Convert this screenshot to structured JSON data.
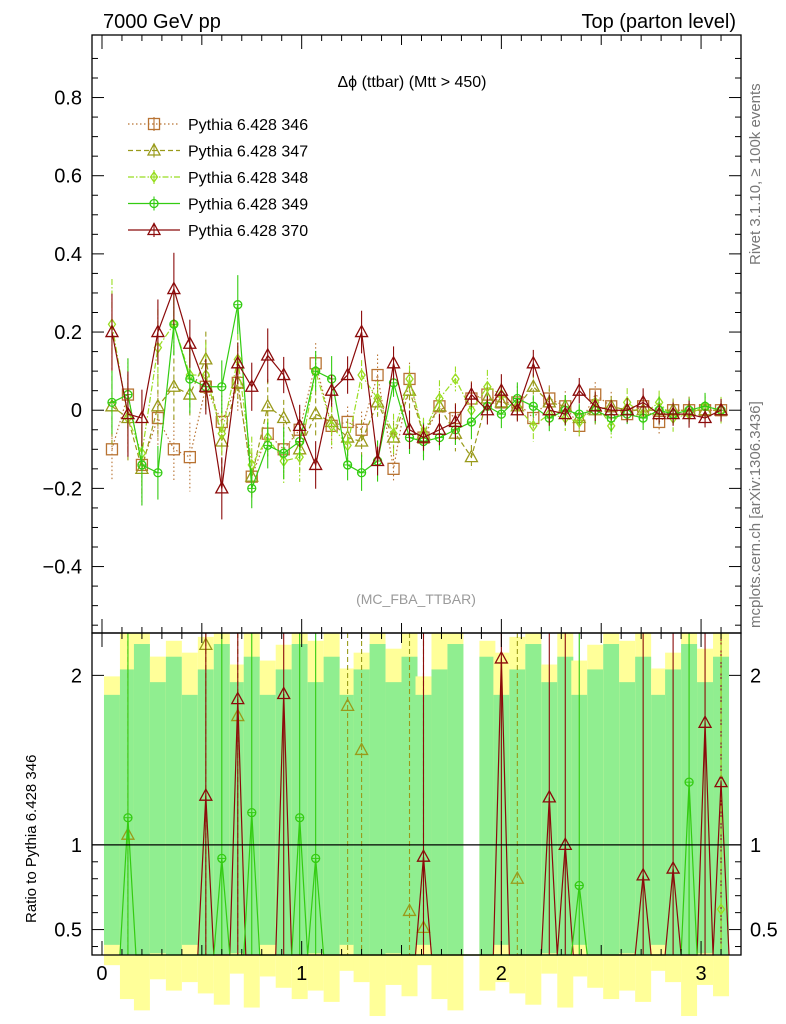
{
  "header": {
    "left": "7000 GeV pp",
    "right": "Top (parton level)"
  },
  "side_labels": {
    "rivet": "Rivet 3.1.10, ≥ 100k events",
    "mcplots": "mcplots.cern.ch [arXiv:1306.3436]"
  },
  "watermark": "(MC_FBA_TTBAR)",
  "chart_data": [
    {
      "type": "line",
      "title": "Δϕ (ttbar) (Mtt > 450)",
      "xlabel": "",
      "ylabel": "",
      "xlim": [
        -0.05,
        3.2
      ],
      "ylim": [
        -0.57,
        0.96
      ],
      "yticks": [
        "0.8",
        "0.6",
        "0.4",
        "0.2",
        "0",
        "−0.2",
        "−0.4"
      ],
      "ytick_values": [
        0.8,
        0.6,
        0.4,
        0.2,
        0,
        -0.2,
        -0.4
      ],
      "xticks": [
        "0",
        "1",
        "2",
        "3"
      ],
      "xtick_values": [
        0,
        1,
        2,
        3
      ],
      "legend_position": "top-left",
      "x": [
        0.05,
        0.13,
        0.2,
        0.28,
        0.36,
        0.44,
        0.52,
        0.6,
        0.68,
        0.75,
        0.83,
        0.91,
        0.99,
        1.07,
        1.15,
        1.23,
        1.3,
        1.38,
        1.46,
        1.54,
        1.61,
        1.69,
        1.77,
        1.85,
        1.93,
        2.0,
        2.08,
        2.16,
        2.24,
        2.32,
        2.39,
        2.47,
        2.55,
        2.63,
        2.71,
        2.79,
        2.86,
        2.94,
        3.02,
        3.1
      ],
      "series": [
        {
          "name": "Pythia 6.428 346",
          "color": "#b87333",
          "marker": "square",
          "dash": "dotted",
          "values": [
            -0.1,
            0.04,
            -0.14,
            -0.02,
            -0.1,
            -0.12,
            0.06,
            -0.03,
            0.07,
            -0.17,
            -0.06,
            -0.1,
            -0.05,
            0.12,
            -0.04,
            -0.03,
            -0.05,
            0.09,
            -0.15,
            0.08,
            -0.07,
            0.01,
            -0.02,
            0.03,
            0.04,
            0.02,
            0.02,
            -0.02,
            0.03,
            0.01,
            -0.04,
            0.04,
            0.01,
            -0.01,
            0.01,
            -0.03,
            0.0,
            0.0,
            0.0,
            0.0
          ]
        },
        {
          "name": "Pythia 6.428 347",
          "color": "#999a1a",
          "marker": "triangle",
          "dash": "dashed",
          "values": [
            0.01,
            -0.02,
            -0.15,
            0.01,
            0.06,
            0.04,
            0.13,
            -0.08,
            0.07,
            -0.17,
            0.01,
            -0.02,
            -0.1,
            -0.01,
            -0.03,
            -0.07,
            -0.08,
            0.02,
            -0.07,
            0.05,
            -0.06,
            0.01,
            -0.06,
            -0.12,
            0.03,
            0.02,
            0.01,
            0.06,
            0.02,
            0.01,
            -0.02,
            0.0,
            0.01,
            0.0,
            0.0,
            0.0,
            0.0,
            0.0,
            0.0,
            0.0
          ]
        },
        {
          "name": "Pythia 6.428 348",
          "color": "#99dd22",
          "marker": "diamond",
          "dash": "dashdot",
          "values": [
            0.22,
            -0.02,
            -0.11,
            0.16,
            0.22,
            0.09,
            0.09,
            -0.06,
            0.13,
            -0.14,
            -0.07,
            -0.13,
            -0.12,
            0.1,
            -0.04,
            -0.09,
            0.09,
            0.03,
            -0.06,
            0.08,
            -0.06,
            0.03,
            0.08,
            0.0,
            0.06,
            0.04,
            0.01,
            -0.04,
            -0.01,
            -0.02,
            -0.03,
            0.02,
            -0.04,
            0.02,
            -0.01,
            0.02,
            -0.02,
            -0.01,
            0.01,
            0.0
          ]
        },
        {
          "name": "Pythia 6.428 349",
          "color": "#33cc11",
          "marker": "circle",
          "dash": "solid",
          "values": [
            0.02,
            0.04,
            -0.14,
            -0.16,
            0.22,
            0.08,
            0.06,
            0.06,
            0.27,
            -0.2,
            -0.09,
            -0.11,
            -0.08,
            0.1,
            0.08,
            -0.14,
            -0.16,
            -0.13,
            0.07,
            -0.07,
            -0.08,
            -0.07,
            -0.05,
            -0.03,
            0.01,
            -0.01,
            0.03,
            0.01,
            -0.02,
            0.0,
            -0.01,
            0.0,
            -0.02,
            -0.01,
            -0.02,
            0.0,
            -0.01,
            0.0,
            0.01,
            0.0
          ]
        },
        {
          "name": "Pythia 6.428 370",
          "color": "#8b0a0a",
          "marker": "triangle",
          "dash": "solid",
          "values": [
            0.2,
            -0.01,
            -0.02,
            0.2,
            0.31,
            0.17,
            0.06,
            -0.2,
            0.12,
            0.06,
            0.14,
            0.09,
            -0.04,
            -0.14,
            0.05,
            0.09,
            0.2,
            -0.13,
            0.12,
            -0.05,
            -0.07,
            -0.05,
            -0.03,
            0.04,
            0.0,
            0.05,
            0.0,
            0.12,
            0.0,
            -0.01,
            0.05,
            0.01,
            0.0,
            0.0,
            0.02,
            -0.01,
            -0.01,
            -0.01,
            -0.02,
            0.0
          ]
        }
      ]
    },
    {
      "type": "line",
      "ylabel": "Ratio to Pythia 6.428 346",
      "xlabel": "",
      "xlim": [
        -0.05,
        3.2
      ],
      "ylim": [
        0.35,
        2.25
      ],
      "yticks": [
        "2",
        "1",
        "0.5"
      ],
      "ytick_values": [
        2,
        1,
        0.5
      ],
      "reference_line": 1,
      "band_colors": {
        "inner": "#90ee90",
        "outer": "#ffff99"
      },
      "markers": [
        {
          "series": "Pythia 6.428 347",
          "x": 0.13,
          "y": 1.06
        },
        {
          "series": "Pythia 6.428 347",
          "x": 0.52,
          "y": 2.18
        },
        {
          "series": "Pythia 6.428 347",
          "x": 0.68,
          "y": 1.76
        },
        {
          "series": "Pythia 6.428 347",
          "x": 1.23,
          "y": 1.82
        },
        {
          "series": "Pythia 6.428 347",
          "x": 1.3,
          "y": 1.56
        },
        {
          "series": "Pythia 6.428 347",
          "x": 1.54,
          "y": 0.61
        },
        {
          "series": "Pythia 6.428 347",
          "x": 1.61,
          "y": 0.51
        },
        {
          "series": "Pythia 6.428 347",
          "x": 2.08,
          "y": 0.8
        },
        {
          "series": "Pythia 6.428 349",
          "x": 0.13,
          "y": 1.16
        },
        {
          "series": "Pythia 6.428 349",
          "x": 0.6,
          "y": 0.92
        },
        {
          "series": "Pythia 6.428 349",
          "x": 0.75,
          "y": 1.19
        },
        {
          "series": "Pythia 6.428 349",
          "x": 0.99,
          "y": 1.16
        },
        {
          "series": "Pythia 6.428 349",
          "x": 1.07,
          "y": 0.92
        },
        {
          "series": "Pythia 6.428 349",
          "x": 2.39,
          "y": 0.76
        },
        {
          "series": "Pythia 6.428 349",
          "x": 2.94,
          "y": 1.37
        },
        {
          "series": "Pythia 6.428 370",
          "x": 0.52,
          "y": 1.29
        },
        {
          "series": "Pythia 6.428 370",
          "x": 0.68,
          "y": 1.86
        },
        {
          "series": "Pythia 6.428 370",
          "x": 0.91,
          "y": 1.89
        },
        {
          "series": "Pythia 6.428 370",
          "x": 1.61,
          "y": 0.93
        },
        {
          "series": "Pythia 6.428 370",
          "x": 2.0,
          "y": 2.1
        },
        {
          "series": "Pythia 6.428 370",
          "x": 2.24,
          "y": 1.28
        },
        {
          "series": "Pythia 6.428 370",
          "x": 2.32,
          "y": 1.0
        },
        {
          "series": "Pythia 6.428 370",
          "x": 2.71,
          "y": 0.82
        },
        {
          "series": "Pythia 6.428 370",
          "x": 2.86,
          "y": 0.86
        },
        {
          "series": "Pythia 6.428 370",
          "x": 3.02,
          "y": 1.72
        },
        {
          "series": "Pythia 6.428 370",
          "x": 3.1,
          "y": 1.37
        },
        {
          "series": "Pythia 6.428 348",
          "x": 3.1,
          "y": 0.62
        }
      ]
    }
  ]
}
